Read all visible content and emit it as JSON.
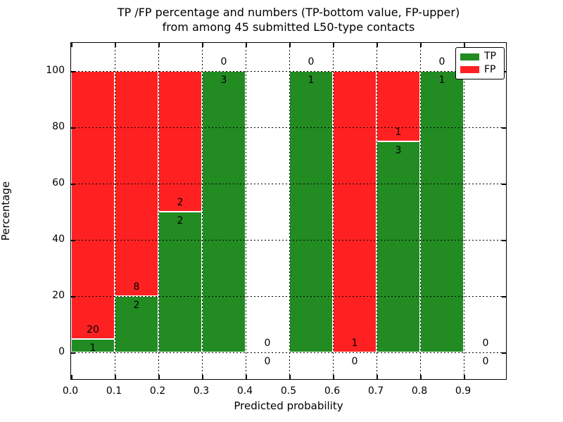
{
  "chart_data": {
    "type": "bar",
    "stacked": true,
    "title_line1": "TP /FP percentage and numbers (TP-bottom value, FP-upper)",
    "title_line2": "from among 45 submitted L50-type contacts",
    "xlabel": "Predicted probability",
    "ylabel": "Percentage",
    "total_contacts": 45,
    "xlim": [
      0.0,
      1.0
    ],
    "ylim": [
      -10,
      110
    ],
    "x_tick_labels": [
      "0.0",
      "0.1",
      "0.2",
      "0.3",
      "0.4",
      "0.5",
      "0.6",
      "0.7",
      "0.8",
      "0.9"
    ],
    "x_tick_values": [
      0.0,
      0.1,
      0.2,
      0.3,
      0.4,
      0.5,
      0.6,
      0.7,
      0.8,
      0.9
    ],
    "y_tick_labels": [
      "0",
      "20",
      "40",
      "60",
      "80",
      "100"
    ],
    "y_tick_values": [
      0,
      20,
      40,
      60,
      80,
      100
    ],
    "grid": true,
    "grid_style": "dotted",
    "legend_position": "upper right",
    "legend": [
      {
        "label": "TP",
        "color": "#228B22"
      },
      {
        "label": "FP",
        "color": "#FF2121"
      }
    ],
    "colors": {
      "tp": "#228B22",
      "fp": "#FF2121",
      "bar_edge": "#ffffff"
    },
    "bins": [
      {
        "x0": 0.0,
        "x1": 0.1,
        "tp": 1,
        "fp": 20,
        "tp_pct": 4.76,
        "fp_pct": 95.24
      },
      {
        "x0": 0.1,
        "x1": 0.2,
        "tp": 2,
        "fp": 8,
        "tp_pct": 20.0,
        "fp_pct": 80.0
      },
      {
        "x0": 0.2,
        "x1": 0.3,
        "tp": 2,
        "fp": 2,
        "tp_pct": 50.0,
        "fp_pct": 50.0
      },
      {
        "x0": 0.3,
        "x1": 0.4,
        "tp": 3,
        "fp": 0,
        "tp_pct": 100.0,
        "fp_pct": 0.0
      },
      {
        "x0": 0.4,
        "x1": 0.5,
        "tp": 0,
        "fp": 0,
        "tp_pct": 0.0,
        "fp_pct": 0.0
      },
      {
        "x0": 0.5,
        "x1": 0.6,
        "tp": 1,
        "fp": 0,
        "tp_pct": 100.0,
        "fp_pct": 0.0
      },
      {
        "x0": 0.6,
        "x1": 0.7,
        "tp": 0,
        "fp": 1,
        "tp_pct": 0.0,
        "fp_pct": 100.0
      },
      {
        "x0": 0.7,
        "x1": 0.8,
        "tp": 3,
        "fp": 1,
        "tp_pct": 75.0,
        "fp_pct": 25.0
      },
      {
        "x0": 0.8,
        "x1": 0.9,
        "tp": 1,
        "fp": 0,
        "tp_pct": 100.0,
        "fp_pct": 0.0
      },
      {
        "x0": 0.9,
        "x1": 1.0,
        "tp": 0,
        "fp": 0,
        "tp_pct": 0.0,
        "fp_pct": 0.0
      }
    ]
  }
}
